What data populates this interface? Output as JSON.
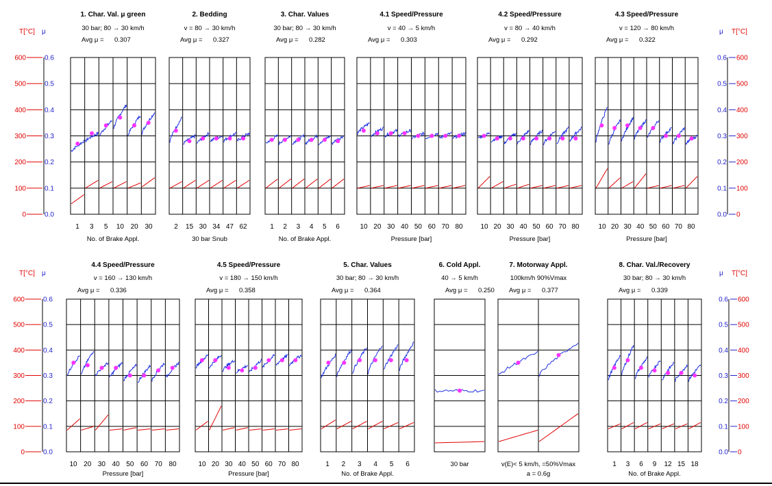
{
  "chart_data": {
    "type": "line",
    "axis_labels": {
      "temperature": "T[°C]",
      "mu": "μ"
    },
    "temp_ticks": [
      "0",
      "100",
      "200",
      "300",
      "400",
      "500",
      "600"
    ],
    "mu_ticks": [
      "0.0",
      "0.1",
      "0.2",
      "0.3",
      "0.4",
      "0.5",
      "0.6"
    ],
    "temp_range": [
      0,
      600
    ],
    "mu_range": [
      0.0,
      0.6
    ],
    "colors": {
      "mu_line": "#1c2ee0",
      "temp_line": "#e00000",
      "marker": "#ff33ff",
      "temp_axis": "#e00000",
      "mu_axis": "#2222cc"
    },
    "rows": [
      {
        "panels": [
          {
            "title": "1. Char. Val. μ green",
            "sub1": "30 bar; 80 → 30 km/h",
            "avg_label": "Avg  μ =",
            "avg": "0.307",
            "xticks": [
              "1",
              "3",
              "5",
              "10",
              "20",
              "30"
            ],
            "xlabel": "No. of Brake Appl.",
            "ncols": 6,
            "mu": [
              [
                0.24,
                0.28
              ],
              [
                0.28,
                0.31
              ],
              [
                0.3,
                0.36
              ],
              [
                0.33,
                0.42
              ],
              [
                0.3,
                0.38
              ],
              [
                0.31,
                0.39
              ]
            ],
            "markers": [
              0.27,
              0.31,
              0.34,
              0.37,
              0.34,
              0.35
            ],
            "temp": [
              [
                40,
                75
              ],
              [
                100,
                130
              ],
              [
                100,
                125
              ],
              [
                100,
                125
              ],
              [
                100,
                120
              ],
              [
                105,
                140
              ]
            ]
          },
          {
            "title": "2. Bedding",
            "sub1": "v = 80 → 30 km/h",
            "avg_label": "Avg  μ =",
            "avg": "0.327",
            "xticks": [
              "2",
              "15",
              "30",
              "34",
              "47",
              "62"
            ],
            "xlabel": "30 bar Snub",
            "ncols": 6,
            "mu": [
              [
                0.28,
                0.37
              ],
              [
                0.27,
                0.3
              ],
              [
                0.27,
                0.31
              ],
              [
                0.28,
                0.3
              ],
              [
                0.28,
                0.31
              ],
              [
                0.28,
                0.31
              ]
            ],
            "markers": [
              0.32,
              0.28,
              0.29,
              0.29,
              0.29,
              0.29
            ],
            "temp": [
              [
                100,
                125
              ],
              [
                100,
                130
              ],
              [
                100,
                130
              ],
              [
                100,
                130
              ],
              [
                100,
                130
              ],
              [
                100,
                130
              ]
            ]
          },
          {
            "title": "3. Char. Values",
            "sub1": "30 bar; 80 → 30 km/h",
            "avg_label": "Avg  μ =",
            "avg": "0.282",
            "xticks": [
              "1",
              "2",
              "3",
              "4",
              "5",
              "6"
            ],
            "xlabel": "No. of Brake Appl.",
            "ncols": 6,
            "mu": [
              [
                0.27,
                0.3
              ],
              [
                0.27,
                0.3
              ],
              [
                0.27,
                0.3
              ],
              [
                0.27,
                0.3
              ],
              [
                0.27,
                0.3
              ],
              [
                0.27,
                0.3
              ]
            ],
            "markers": [
              0.285,
              0.285,
              0.285,
              0.285,
              0.285,
              0.28
            ],
            "temp": [
              [
                100,
                135
              ],
              [
                100,
                135
              ],
              [
                100,
                135
              ],
              [
                100,
                135
              ],
              [
                100,
                135
              ],
              [
                100,
                135
              ]
            ]
          },
          {
            "title": "4.1 Speed/Pressure",
            "sub1": "v = 40 → 5 km/h",
            "avg_label": "Avg  μ =",
            "avg": "0.303",
            "xticks": [
              "10",
              "20",
              "30",
              "40",
              "50",
              "60",
              "70",
              "80"
            ],
            "xlabel": "Pressure [bar]",
            "ncols": 8,
            "mu": [
              [
                0.31,
                0.35
              ],
              [
                0.3,
                0.33
              ],
              [
                0.3,
                0.32
              ],
              [
                0.3,
                0.32
              ],
              [
                0.29,
                0.31
              ],
              [
                0.29,
                0.31
              ],
              [
                0.29,
                0.31
              ],
              [
                0.29,
                0.31
              ]
            ],
            "markers": [
              0.32,
              0.31,
              0.31,
              0.31,
              0.3,
              0.3,
              0.3,
              0.3
            ],
            "temp": [
              [
                100,
                110
              ],
              [
                100,
                110
              ],
              [
                100,
                110
              ],
              [
                100,
                110
              ],
              [
                100,
                110
              ],
              [
                100,
                110
              ],
              [
                100,
                110
              ],
              [
                100,
                110
              ]
            ]
          },
          {
            "title": "4.2 Speed/Pressure",
            "sub1": "v = 80 → 40 km/h",
            "avg_label": "Avg  μ =",
            "avg": "0.292",
            "xticks": [
              "10",
              "20",
              "30",
              "40",
              "50",
              "60",
              "70",
              "80"
            ],
            "xlabel": "Pressure [bar]",
            "ncols": 8,
            "mu": [
              [
                0.29,
                0.31
              ],
              [
                0.28,
                0.3
              ],
              [
                0.27,
                0.31
              ],
              [
                0.27,
                0.32
              ],
              [
                0.27,
                0.32
              ],
              [
                0.27,
                0.32
              ],
              [
                0.27,
                0.33
              ],
              [
                0.28,
                0.33
              ]
            ],
            "markers": [
              0.3,
              0.29,
              0.29,
              0.29,
              0.29,
              0.29,
              0.29,
              0.29
            ],
            "temp": [
              [
                100,
                145
              ],
              [
                100,
                125
              ],
              [
                100,
                115
              ],
              [
                100,
                115
              ],
              [
                100,
                110
              ],
              [
                100,
                110
              ],
              [
                100,
                110
              ],
              [
                100,
                110
              ]
            ]
          },
          {
            "title": "4.3 Speed/Pressure",
            "sub1": "v = 120 → 80 km/h",
            "avg_label": "Avg  μ =",
            "avg": "0.322",
            "xticks": [
              "10",
              "20",
              "30",
              "40",
              "50",
              "60",
              "70",
              "80"
            ],
            "xlabel": "Pressure [bar]",
            "ncols": 8,
            "mu": [
              [
                0.28,
                0.41
              ],
              [
                0.27,
                0.36
              ],
              [
                0.28,
                0.37
              ],
              [
                0.29,
                0.36
              ],
              [
                0.29,
                0.36
              ],
              [
                0.28,
                0.33
              ],
              [
                0.27,
                0.33
              ],
              [
                0.27,
                0.3
              ]
            ],
            "markers": [
              0.34,
              0.33,
              0.34,
              0.33,
              0.33,
              0.3,
              0.3,
              0.29
            ],
            "temp": [
              [
                100,
                175
              ],
              [
                100,
                140
              ],
              [
                100,
                125
              ],
              [
                100,
                155
              ],
              [
                100,
                110
              ],
              [
                100,
                110
              ],
              [
                100,
                110
              ],
              [
                100,
                145
              ]
            ]
          }
        ]
      },
      {
        "panels": [
          {
            "title": "4.4 Speed/Pressure",
            "sub1": "v = 160 → 130 km/h",
            "avg_label": "Avg  μ =",
            "avg": "0.336",
            "xticks": [
              "10",
              "20",
              "30",
              "40",
              "50",
              "60",
              "70",
              "80"
            ],
            "xlabel": "Pressure [bar]",
            "ncols": 8,
            "mu": [
              [
                0.3,
                0.38
              ],
              [
                0.3,
                0.4
              ],
              [
                0.3,
                0.35
              ],
              [
                0.29,
                0.35
              ],
              [
                0.28,
                0.34
              ],
              [
                0.27,
                0.34
              ],
              [
                0.28,
                0.35
              ],
              [
                0.29,
                0.35
              ]
            ],
            "markers": [
              0.35,
              0.34,
              0.33,
              0.33,
              0.3,
              0.3,
              0.32,
              0.33
            ],
            "temp": [
              [
                85,
                130
              ],
              [
                85,
                100
              ],
              [
                85,
                145
              ],
              [
                85,
                90
              ],
              [
                85,
                95
              ],
              [
                85,
                90
              ],
              [
                85,
                90
              ],
              [
                85,
                90
              ]
            ]
          },
          {
            "title": "4.5 Speed/Pressure",
            "sub1": "v = 180 → 150 km/h",
            "avg_label": "Avg  μ =",
            "avg": "0.358",
            "xticks": [
              "10",
              "20",
              "30",
              "40",
              "50",
              "60",
              "70",
              "80"
            ],
            "xlabel": "Pressure [bar]",
            "ncols": 8,
            "mu": [
              [
                0.33,
                0.38
              ],
              [
                0.33,
                0.38
              ],
              [
                0.32,
                0.36
              ],
              [
                0.31,
                0.34
              ],
              [
                0.31,
                0.36
              ],
              [
                0.33,
                0.38
              ],
              [
                0.34,
                0.38
              ],
              [
                0.34,
                0.38
              ]
            ],
            "markers": [
              0.36,
              0.36,
              0.33,
              0.32,
              0.33,
              0.36,
              0.36,
              0.36
            ],
            "temp": [
              [
                85,
                120
              ],
              [
                85,
                180
              ],
              [
                85,
                95
              ],
              [
                85,
                95
              ],
              [
                85,
                90
              ],
              [
                85,
                90
              ],
              [
                85,
                90
              ],
              [
                85,
                90
              ]
            ]
          },
          {
            "title": "5. Char. Values",
            "sub1": "30 bar; 80 → 30 km/h",
            "avg_label": "Avg  μ =",
            "avg": "0.364",
            "xticks": [
              "1",
              "2",
              "3",
              "4",
              "5",
              "6"
            ],
            "xlabel": "No. of Brake Appl.",
            "ncols": 6,
            "mu": [
              [
                0.29,
                0.38
              ],
              [
                0.3,
                0.4
              ],
              [
                0.31,
                0.41
              ],
              [
                0.31,
                0.42
              ],
              [
                0.32,
                0.42
              ],
              [
                0.32,
                0.43
              ]
            ],
            "markers": [
              0.35,
              0.35,
              0.36,
              0.36,
              0.36,
              0.36
            ],
            "temp": [
              [
                90,
                125
              ],
              [
                90,
                120
              ],
              [
                90,
                120
              ],
              [
                90,
                120
              ],
              [
                90,
                115
              ],
              [
                90,
                115
              ]
            ]
          },
          {
            "title": "6. Cold Appl.",
            "sub1": "40 → 5 km/h",
            "avg_label": "Avg  μ =",
            "avg": "0.250",
            "xticks": [
              "30 bar"
            ],
            "xlabel": "",
            "ncols": 1,
            "mu": [
              [
                0.24,
                0.24
              ]
            ],
            "markers": [
              0.24
            ],
            "temp": [
              [
                35,
                40
              ]
            ]
          },
          {
            "title": "7. Motorway Appl.",
            "sub1": "100km/h       90%Vmax",
            "avg_label": "Avg  μ =",
            "avg": "0.377",
            "xticks": [
              "v(E)< 5 km/h,    =50%Vmax"
            ],
            "xlabel": "a = 0.6g",
            "ncols": 2,
            "mu": [
              [
                0.3,
                0.39
              ],
              [
                0.3,
                0.43
              ]
            ],
            "markers": [
              0.35,
              0.38
            ],
            "temp": [
              [
                40,
                85
              ],
              [
                40,
                150
              ]
            ]
          },
          {
            "title": "8. Char. Val./Recovery",
            "sub1": "30 bar; 80 → 30 km/h",
            "avg_label": "Avg  μ =",
            "avg": "0.339",
            "xticks": [
              "1",
              "3",
              "6",
              "9",
              "12",
              "15",
              "18"
            ],
            "xlabel": "No. of Brake Appl.",
            "ncols": 7,
            "mu": [
              [
                0.28,
                0.38
              ],
              [
                0.3,
                0.42
              ],
              [
                0.29,
                0.37
              ],
              [
                0.29,
                0.36
              ],
              [
                0.28,
                0.35
              ],
              [
                0.28,
                0.34
              ],
              [
                0.28,
                0.34
              ]
            ],
            "markers": [
              0.33,
              0.36,
              0.33,
              0.32,
              0.31,
              0.31,
              0.3
            ],
            "temp": [
              [
                90,
                110
              ],
              [
                90,
                115
              ],
              [
                90,
                115
              ],
              [
                90,
                110
              ],
              [
                90,
                110
              ],
              [
                90,
                110
              ],
              [
                90,
                115
              ]
            ]
          }
        ]
      }
    ]
  }
}
